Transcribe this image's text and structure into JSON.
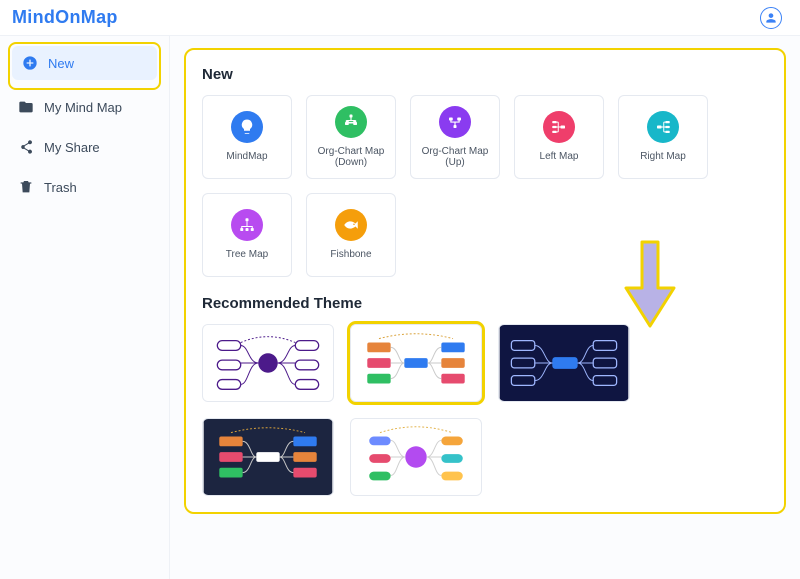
{
  "brand": {
    "text": "MindOnMap",
    "color": "#2f7bf0"
  },
  "avatar": {
    "border": "#3b82f6"
  },
  "sidebar": {
    "items": [
      {
        "label": "New",
        "icon": "plus-circle",
        "active": true
      },
      {
        "label": "My Mind Map",
        "icon": "folder",
        "active": false
      },
      {
        "label": "My Share",
        "icon": "share",
        "active": false
      },
      {
        "label": "Trash",
        "icon": "trash",
        "active": false
      }
    ]
  },
  "sections": {
    "new_label": "New",
    "recommended_label": "Recommended Theme"
  },
  "templates": [
    {
      "label": "MindMap",
      "color": "#2f7bf0",
      "icon": "bulb"
    },
    {
      "label": "Org-Chart Map (Down)",
      "color": "#2fbf63",
      "icon": "org-down"
    },
    {
      "label": "Org-Chart Map (Up)",
      "color": "#8a3bf0",
      "icon": "org-up"
    },
    {
      "label": "Left Map",
      "color": "#ef3e6b",
      "icon": "left"
    },
    {
      "label": "Right Map",
      "color": "#18b7c9",
      "icon": "right"
    },
    {
      "label": "Tree Map",
      "color": "#b84bf0",
      "icon": "tree"
    },
    {
      "label": "Fishbone",
      "color": "#f59e0b",
      "icon": "fish"
    }
  ],
  "themes": [
    {
      "bg": "#ffffff",
      "hub": "#4c1a8a",
      "boxFill": "#ffffff",
      "boxStroke": "#4c1a8a",
      "selected": false
    },
    {
      "bg": "#ffffff",
      "hub": "#2f7bf0",
      "bars": [
        "#e6843b",
        "#e64b6e",
        "#2fbf63",
        "#2f7bf0",
        "#e6843b",
        "#e64b6e"
      ],
      "selected": true
    },
    {
      "bg": "#0f1541",
      "hub": "#2f7bf0",
      "boxStroke": "#9fb7ff",
      "selected": false
    },
    {
      "bg": "#1c2540",
      "hub": "#ffffff",
      "bars": [
        "#e6843b",
        "#e64b6e",
        "#2fbf63",
        "#2f7bf0",
        "#e6843b",
        "#e64b6e"
      ],
      "selected": false
    },
    {
      "bg": "#ffffff",
      "hub": "#b34bf0",
      "dots": [
        "#6d8bff",
        "#e64b6e",
        "#2fbf63",
        "#f5a53b",
        "#35c2c9",
        "#ffc34d"
      ],
      "selected": false
    }
  ],
  "highlight": {
    "color": "#f2d200"
  },
  "arrow": {
    "fill": "#b8b2e6",
    "stroke": "#f2d200"
  }
}
